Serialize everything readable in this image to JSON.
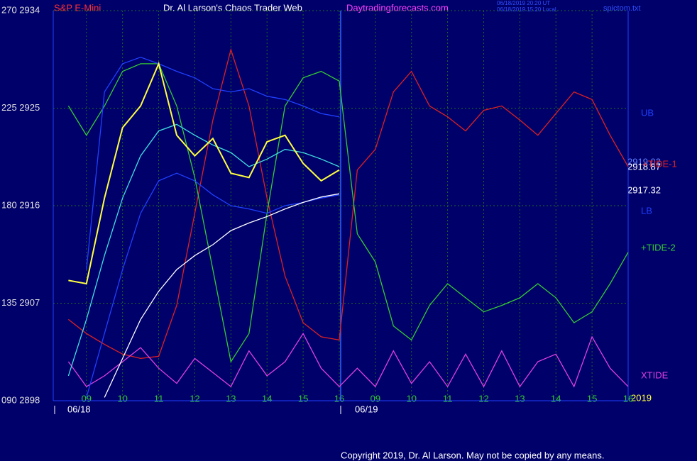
{
  "chart_data": {
    "type": "line",
    "title": "Dr. Al Larson's Chaos Trader Web",
    "symbol": "S&P E-Mini",
    "site": "Daytradingforecasts.com",
    "file": "spictom.txt",
    "timestamps": [
      "06/18/2019 20:20 UT",
      "06/18/2019 15:20 Local"
    ],
    "copyright": "Copyright 2019, Dr. Al Larson. May not be copied by any means.",
    "date_labels": [
      "06/18",
      "06/19"
    ],
    "year": "2019",
    "annotations": [
      "2919.02",
      "2918.87",
      "2917.32"
    ],
    "grid": true,
    "xlim": [
      8.08,
      24
    ],
    "xticks": [
      {
        "value": 9,
        "label": "09"
      },
      10,
      11,
      12,
      13,
      14,
      15,
      16,
      {
        "value": 17,
        "label": "09"
      },
      {
        "value": 18,
        "label": "10"
      },
      {
        "value": 19,
        "label": "11"
      },
      {
        "value": 20,
        "label": "12"
      },
      {
        "value": 21,
        "label": "13"
      },
      {
        "value": 22,
        "label": "14"
      },
      {
        "value": 23,
        "label": "15"
      },
      {
        "value": 24,
        "label": "16"
      }
    ],
    "ylim": [
      2898,
      2934
    ],
    "yticks": [
      {
        "value": 2898,
        "label": "090 2898"
      },
      {
        "value": 2907,
        "label": "135 2907"
      },
      {
        "value": 2916,
        "label": "180 2916"
      },
      {
        "value": 2925,
        "label": "225 2925"
      },
      {
        "value": 2934,
        "label": "270 2934"
      }
    ],
    "x": [
      8.5,
      9,
      9.5,
      10,
      10.5,
      11,
      11.5,
      12,
      12.5,
      13,
      13.5,
      14,
      14.5,
      15,
      15.5,
      16,
      16.5,
      17,
      17.5,
      18,
      18.5,
      19,
      19.5,
      20,
      20.5,
      21,
      21.5,
      22,
      22.5,
      23,
      23.5,
      24
    ],
    "series": [
      {
        "name": "+TIDE-1",
        "color": "#e02020",
        "values": [
          2905.5,
          2904.2,
          2903.2,
          2902.3,
          2901.9,
          2902.1,
          2906.8,
          2915.3,
          2923.9,
          2930.4,
          2925.2,
          2916.7,
          2909.5,
          2905.2,
          2903.9,
          2903.6,
          2919.3,
          2921.2,
          2926.5,
          2928.4,
          2925.2,
          2924.2,
          2922.9,
          2924.8,
          2925.2,
          2923.9,
          2922.5,
          2924.5,
          2926.5,
          2925.8,
          2922.5,
          2919.6
        ]
      },
      {
        "name": "+TIDE-2",
        "color": "#33cc33",
        "values": [
          2925.2,
          2922.5,
          2925.2,
          2928.4,
          2929.1,
          2929.1,
          2925.2,
          2918.6,
          2910.1,
          2901.6,
          2904.2,
          2915.3,
          2925.2,
          2927.8,
          2928.4,
          2927.5,
          2913.4,
          2910.8,
          2904.9,
          2903.6,
          2906.8,
          2908.8,
          2907.5,
          2906.2,
          2906.8,
          2907.5,
          2908.8,
          2907.5,
          2905.2,
          2906.2,
          2908.8,
          2911.7
        ]
      },
      {
        "name": "XTIDE",
        "color": "#e040e0",
        "values": [
          2901.6,
          2899.3,
          2900.3,
          2901.6,
          2902.9,
          2901.0,
          2899.6,
          2901.9,
          2900.6,
          2899.3,
          2902.6,
          2900.3,
          2901.6,
          2904.2,
          2901.0,
          2899.3,
          2901.0,
          2899.3,
          2902.6,
          2899.6,
          2901.6,
          2899.3,
          2902.3,
          2899.3,
          2902.6,
          2899.3,
          2901.6,
          2902.3,
          2899.3,
          2903.9,
          2901.0,
          2899.3
        ]
      },
      {
        "name": "UB",
        "color": "#2040ff",
        "values": [
          null,
          2910.1,
          2926.5,
          2929.1,
          2929.7,
          2929.1,
          2928.4,
          2927.8,
          2926.8,
          2926.5,
          2926.8,
          2926.1,
          2925.8,
          2925.2,
          2924.5,
          2924.2,
          null,
          null,
          null,
          null,
          null,
          null,
          null,
          null,
          null,
          null,
          null,
          null,
          null,
          null,
          null,
          null
        ]
      },
      {
        "name": "LB",
        "color": "#2040ff",
        "values": [
          null,
          2898.3,
          2904.2,
          2910.1,
          2915.3,
          2918.3,
          2919.0,
          2918.3,
          2917.0,
          2916.0,
          2915.7,
          2915.3,
          2916.0,
          2916.3,
          2916.7,
          2917.0,
          null,
          null,
          null,
          null,
          null,
          null,
          null,
          null,
          null,
          null,
          null,
          null,
          null,
          null,
          null,
          null
        ]
      },
      {
        "color": "#40e0e0",
        "values": [
          2900.3,
          2905.5,
          2911.4,
          2916.7,
          2920.6,
          2922.9,
          2923.5,
          2922.5,
          2921.6,
          2920.9,
          2919.6,
          2920.3,
          2921.2,
          2920.9,
          2920.3,
          2919.6,
          null,
          null,
          null,
          null,
          null,
          null,
          null,
          null,
          null,
          null,
          null,
          null,
          null,
          null,
          null,
          null
        ]
      },
      {
        "color": "#ffffff",
        "values": [
          null,
          null,
          2898.3,
          2901.9,
          2905.5,
          2908.1,
          2910.1,
          2911.4,
          2912.4,
          2913.7,
          2914.4,
          2915.0,
          2915.7,
          2916.3,
          2916.8,
          2917.1,
          null,
          null,
          null,
          null,
          null,
          null,
          null,
          null,
          null,
          null,
          null,
          null,
          null,
          null,
          null,
          null
        ]
      },
      {
        "color": "#ffff40",
        "values": [
          2909.1,
          2908.8,
          2916.7,
          2923.2,
          2925.2,
          2929.1,
          2922.5,
          2920.6,
          2922.2,
          2919.0,
          2918.6,
          2921.9,
          2922.5,
          2919.9,
          2918.3,
          2919.3,
          null,
          null,
          null,
          null,
          null,
          null,
          null,
          null,
          null,
          null,
          null,
          null,
          null,
          null,
          null,
          null
        ]
      }
    ]
  }
}
